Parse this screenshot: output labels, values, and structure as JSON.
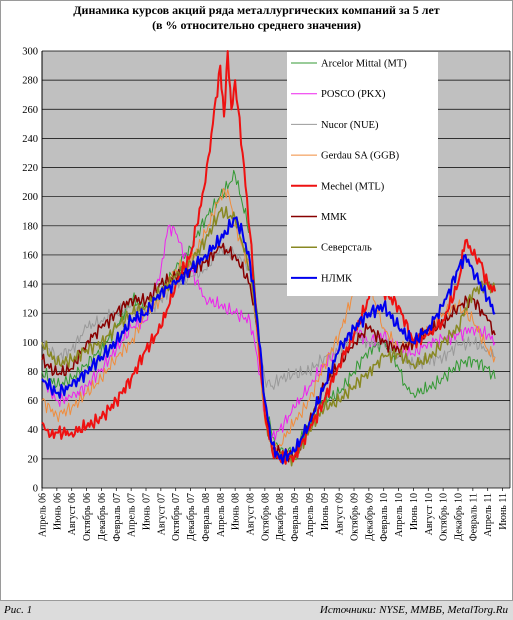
{
  "header": {
    "title": "Динамика курсов акций ряда металлургических компаний за 5 лет",
    "subtitle": "(в % относительно среднего значения)"
  },
  "footer": {
    "figure_label": "Рис. 1",
    "source": "Источники: NYSE, ММВБ, MetalTorg.Ru"
  },
  "colors": {
    "plot_bg": "#c0c0c0",
    "grid": "#000000",
    "legend_bg": "#ffffff"
  },
  "chart_data": {
    "type": "line",
    "title": "Динамика курсов акций ряда металлургических компаний за 5 лет",
    "subtitle": "(в % относительно среднего значения)",
    "ylim": [
      0,
      300
    ],
    "yticks": [
      0,
      20,
      40,
      60,
      80,
      100,
      120,
      140,
      160,
      180,
      200,
      220,
      240,
      260,
      280,
      300
    ],
    "grid": true,
    "legend_position": "top-right",
    "x_labels": [
      "Апрель 06",
      "Июнь 06",
      "Август 06",
      "Октябрь 06",
      "Декабрь 06",
      "Февраль 07",
      "Апрель 07",
      "Июнь 07",
      "Август 07",
      "Октябрь 07",
      "Декабрь 07",
      "Февраль 08",
      "Апрель 08",
      "Июнь 08",
      "Август 08",
      "Октябрь 08",
      "Декабрь 08",
      "Февраль 09",
      "Апрель 09",
      "Июнь 09",
      "Август 09",
      "Октябрь 09",
      "Декабрь 09",
      "Февраль 10",
      "Апрель 10",
      "Июнь 10",
      "Август 10",
      "Октябрь 10",
      "Декабрь 10",
      "Февраль 11",
      "Апрель 11",
      "Июнь 11"
    ],
    "x_months": [
      0,
      2,
      4,
      6,
      8,
      10,
      12,
      14,
      16,
      18,
      20,
      22,
      24,
      26,
      28,
      30,
      32,
      34,
      36,
      38,
      40,
      42,
      44,
      46,
      48,
      50,
      52,
      54,
      56,
      58,
      60,
      62
    ],
    "series": [
      {
        "name": "Arcelor Mittal (MT)",
        "color": "#339933",
        "width": 1,
        "x": [
          0,
          2,
          4,
          6,
          8,
          10,
          12,
          14,
          16,
          18,
          20,
          22,
          24,
          26,
          28,
          29,
          30,
          31,
          32,
          34,
          36,
          38,
          40,
          42,
          44,
          46,
          48,
          49,
          50,
          52,
          54,
          56,
          58,
          60,
          61
        ],
        "values": [
          80,
          70,
          75,
          85,
          95,
          110,
          130,
          125,
          135,
          150,
          165,
          185,
          200,
          215,
          175,
          120,
          60,
          35,
          25,
          25,
          45,
          60,
          65,
          80,
          95,
          100,
          82,
          70,
          65,
          68,
          75,
          85,
          88,
          82,
          75
        ]
      },
      {
        "name": "POSCO (PKX)",
        "color": "#ee22ee",
        "width": 1,
        "x": [
          0,
          2,
          4,
          6,
          8,
          10,
          12,
          14,
          16,
          17,
          18,
          20,
          22,
          24,
          26,
          28,
          29,
          30,
          31,
          32,
          34,
          36,
          38,
          40,
          42,
          44,
          46,
          48,
          50,
          52,
          54,
          56,
          58,
          60,
          61
        ],
        "values": [
          75,
          60,
          62,
          70,
          82,
          95,
          110,
          115,
          150,
          180,
          175,
          150,
          130,
          125,
          120,
          115,
          90,
          50,
          35,
          40,
          55,
          70,
          85,
          95,
          110,
          100,
          105,
          95,
          92,
          100,
          102,
          105,
          110,
          105,
          100
        ]
      },
      {
        "name": "Nucor (NUE)",
        "color": "#999999",
        "width": 1,
        "x": [
          0,
          2,
          4,
          6,
          8,
          10,
          12,
          14,
          16,
          18,
          20,
          22,
          24,
          26,
          28,
          29,
          30,
          31,
          32,
          34,
          36,
          38,
          40,
          42,
          44,
          46,
          48,
          50,
          52,
          54,
          56,
          58,
          60,
          61
        ],
        "values": [
          100,
          90,
          95,
          110,
          115,
          120,
          125,
          120,
          130,
          140,
          145,
          150,
          165,
          160,
          150,
          110,
          75,
          70,
          75,
          78,
          80,
          90,
          95,
          105,
          100,
          100,
          90,
          85,
          88,
          90,
          98,
          100,
          95,
          90
        ]
      },
      {
        "name": "Gerdau SA (GGB)",
        "color": "#f08c3c",
        "width": 1,
        "x": [
          0,
          2,
          4,
          6,
          8,
          10,
          12,
          14,
          16,
          18,
          20,
          22,
          24,
          25,
          26,
          28,
          29,
          30,
          31,
          32,
          34,
          36,
          38,
          40,
          42,
          43,
          44,
          46,
          48,
          50,
          52,
          54,
          56,
          58,
          60,
          61
        ],
        "values": [
          60,
          50,
          55,
          65,
          75,
          90,
          100,
          120,
          130,
          150,
          155,
          175,
          200,
          205,
          180,
          150,
          100,
          45,
          30,
          30,
          45,
          60,
          85,
          105,
          135,
          145,
          140,
          110,
          95,
          100,
          110,
          120,
          125,
          115,
          95,
          90
        ]
      },
      {
        "name": "Mechel (MTL)",
        "color": "#ee1111",
        "width": 2,
        "x": [
          0,
          1,
          2,
          4,
          6,
          8,
          10,
          12,
          14,
          16,
          18,
          20,
          22,
          23,
          24,
          24.5,
          25,
          25.5,
          26,
          27,
          28,
          29,
          30,
          31,
          32,
          34,
          36,
          38,
          40,
          42,
          44,
          45,
          46,
          48,
          50,
          52,
          54,
          56,
          57,
          58,
          59,
          60,
          61
        ],
        "values": [
          45,
          35,
          38,
          38,
          42,
          48,
          60,
          75,
          95,
          110,
          140,
          160,
          210,
          250,
          290,
          255,
          300,
          260,
          280,
          230,
          175,
          110,
          50,
          25,
          20,
          22,
          40,
          60,
          85,
          105,
          130,
          145,
          135,
          125,
          100,
          105,
          115,
          140,
          170,
          160,
          155,
          140,
          135
        ]
      },
      {
        "name": "ММК",
        "color": "#880000",
        "width": 1.5,
        "x": [
          0,
          2,
          4,
          6,
          8,
          10,
          12,
          14,
          16,
          18,
          20,
          22,
          24,
          26,
          28,
          29,
          30,
          31,
          32,
          34,
          36,
          38,
          40,
          42,
          44,
          46,
          48,
          50,
          52,
          54,
          56,
          58,
          60,
          61
        ],
        "values": [
          88,
          78,
          82,
          100,
          110,
          120,
          130,
          128,
          140,
          145,
          150,
          155,
          165,
          160,
          140,
          110,
          55,
          25,
          25,
          22,
          45,
          70,
          85,
          100,
          110,
          100,
          95,
          100,
          108,
          112,
          125,
          130,
          115,
          105
        ]
      },
      {
        "name": "Северсталь",
        "color": "#888822",
        "width": 1.5,
        "x": [
          0,
          2,
          4,
          6,
          8,
          10,
          12,
          14,
          16,
          18,
          20,
          22,
          24,
          26,
          28,
          29,
          30,
          31,
          32,
          34,
          36,
          38,
          40,
          42,
          44,
          46,
          48,
          50,
          52,
          54,
          56,
          58,
          60,
          61
        ],
        "values": [
          100,
          85,
          88,
          95,
          100,
          110,
          120,
          125,
          135,
          145,
          155,
          170,
          190,
          185,
          150,
          110,
          50,
          25,
          22,
          20,
          40,
          55,
          60,
          70,
          80,
          90,
          92,
          85,
          88,
          100,
          110,
          135,
          140,
          135
        ]
      },
      {
        "name": "НЛМК",
        "color": "#0000ee",
        "width": 2,
        "x": [
          0,
          2,
          4,
          6,
          8,
          10,
          12,
          14,
          16,
          18,
          20,
          22,
          24,
          26,
          27,
          28,
          29,
          30,
          31,
          32,
          34,
          36,
          38,
          40,
          42,
          44,
          46,
          48,
          50,
          52,
          54,
          56,
          57,
          58,
          60,
          61
        ],
        "values": [
          75,
          65,
          70,
          80,
          90,
          100,
          115,
          120,
          135,
          140,
          150,
          160,
          170,
          185,
          175,
          155,
          115,
          60,
          30,
          20,
          25,
          45,
          70,
          95,
          110,
          120,
          125,
          110,
          100,
          110,
          125,
          150,
          160,
          150,
          130,
          120
        ]
      }
    ]
  }
}
